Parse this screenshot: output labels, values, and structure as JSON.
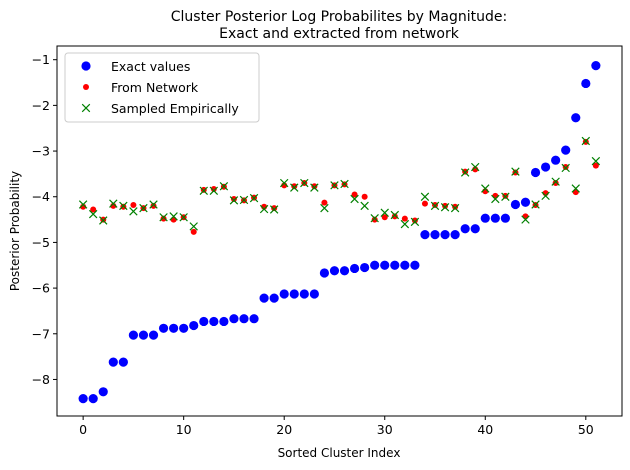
{
  "chart_data": {
    "type": "scatter",
    "title_lines": [
      "Cluster Posterior Log Probabilites by Magnitude:",
      "Exact and extracted from network"
    ],
    "xlabel": "Sorted Cluster Index",
    "ylabel": "Posterior Probability",
    "xlim": [
      -2.6,
      53.6
    ],
    "ylim": [
      -8.8,
      -0.7
    ],
    "xticks": [
      0,
      10,
      20,
      30,
      40,
      50
    ],
    "yticks": [
      -8,
      -7,
      -6,
      -5,
      -4,
      -3,
      -2,
      -1
    ],
    "grid": false,
    "legend_position": "top-left",
    "series": [
      {
        "name": "Exact values",
        "marker": "circle",
        "color": "#0000ff",
        "y": [
          -8.42,
          -8.42,
          -8.27,
          -7.62,
          -7.62,
          -7.03,
          -7.03,
          -7.03,
          -6.88,
          -6.88,
          -6.88,
          -6.82,
          -6.73,
          -6.73,
          -6.73,
          -6.67,
          -6.67,
          -6.67,
          -6.22,
          -6.22,
          -6.13,
          -6.13,
          -6.13,
          -6.13,
          -5.67,
          -5.62,
          -5.62,
          -5.57,
          -5.55,
          -5.5,
          -5.5,
          -5.5,
          -5.5,
          -5.5,
          -4.83,
          -4.83,
          -4.83,
          -4.83,
          -4.7,
          -4.7,
          -4.47,
          -4.47,
          -4.47,
          -4.17,
          -4.12,
          -3.47,
          -3.35,
          -3.2,
          -2.98,
          -2.27,
          -1.52,
          -1.13
        ]
      },
      {
        "name": "From Network",
        "marker": "dot",
        "color": "#ff0000",
        "y": [
          -4.22,
          -4.28,
          -4.5,
          -4.2,
          -4.22,
          -4.18,
          -4.25,
          -4.2,
          -4.48,
          -4.5,
          -4.45,
          -4.77,
          -3.85,
          -3.83,
          -3.78,
          -4.05,
          -4.08,
          -4.02,
          -4.22,
          -4.25,
          -3.75,
          -3.77,
          -3.7,
          -3.77,
          -4.13,
          -3.75,
          -3.73,
          -3.95,
          -4.0,
          -4.5,
          -4.45,
          -4.43,
          -4.48,
          -4.52,
          -4.15,
          -4.18,
          -4.2,
          -4.22,
          -3.45,
          -3.4,
          -3.88,
          -3.98,
          -3.98,
          -3.47,
          -4.43,
          -4.18,
          -3.92,
          -3.7,
          -3.35,
          -3.9,
          -2.8,
          -3.32
        ]
      },
      {
        "name": "Sampled Empirically",
        "marker": "x",
        "color": "#008000",
        "y": [
          -4.17,
          -4.38,
          -4.52,
          -4.15,
          -4.2,
          -4.32,
          -4.25,
          -4.17,
          -4.45,
          -4.43,
          -4.45,
          -4.65,
          -3.87,
          -3.87,
          -3.77,
          -4.08,
          -4.07,
          -4.03,
          -4.27,
          -4.28,
          -3.7,
          -3.8,
          -3.7,
          -3.8,
          -4.25,
          -3.75,
          -3.72,
          -4.05,
          -4.2,
          -4.47,
          -4.35,
          -4.4,
          -4.6,
          -4.55,
          -4.0,
          -4.2,
          -4.23,
          -4.25,
          -3.47,
          -3.35,
          -3.82,
          -4.05,
          -4.0,
          -3.45,
          -4.5,
          -4.17,
          -3.98,
          -3.67,
          -3.37,
          -3.82,
          -2.78,
          -3.22
        ]
      }
    ]
  }
}
